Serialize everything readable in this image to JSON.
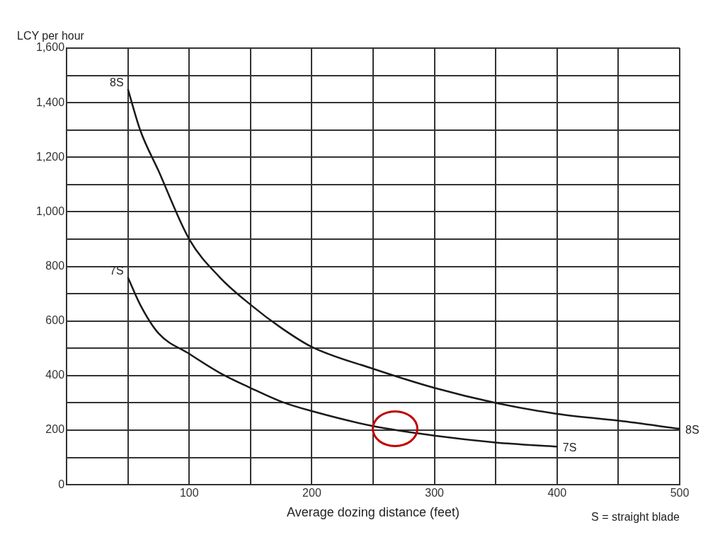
{
  "chart_data": {
    "type": "line",
    "xlabel": "Average dozing distance (feet)",
    "ylabel": "LCY per hour",
    "annotations": [
      "S = straight blade"
    ],
    "xlim": [
      0,
      500
    ],
    "xticks": [
      {
        "value": 0,
        "label": null
      },
      {
        "value": 50,
        "label": null
      },
      100,
      {
        "value": 150,
        "label": null
      },
      200,
      {
        "value": 250,
        "label": null
      },
      300,
      {
        "value": 350,
        "label": null
      },
      400,
      {
        "value": 450,
        "label": null
      },
      500
    ],
    "ylim": [
      0,
      1600
    ],
    "yticks": [
      0,
      {
        "value": 100,
        "label": null
      },
      200,
      {
        "value": 300,
        "label": null
      },
      400,
      {
        "value": 500,
        "label": null
      },
      600,
      {
        "value": 700,
        "label": null
      },
      800,
      {
        "value": 900,
        "label": null
      },
      {
        "value": 1000,
        "label": "1,000"
      },
      {
        "value": 1100,
        "label": null
      },
      {
        "value": 1200,
        "label": "1,200"
      },
      {
        "value": 1300,
        "label": null
      },
      {
        "value": 1400,
        "label": "1,400"
      },
      {
        "value": 1500,
        "label": null
      },
      {
        "value": 1600,
        "label": "1,600"
      }
    ],
    "grid": true,
    "legend": false,
    "marker": "none",
    "line_style": "solid",
    "series": [
      {
        "name": "8S",
        "color": "#1a1a1a",
        "x": [
          50,
          60,
          75,
          100,
          125,
          150,
          175,
          200,
          250,
          300,
          350,
          400,
          450,
          500
        ],
        "values": [
          1450,
          1300,
          1150,
          900,
          760,
          660,
          575,
          505,
          425,
          355,
          300,
          260,
          235,
          205
        ]
      },
      {
        "name": "7S",
        "color": "#1a1a1a",
        "x": [
          50,
          60,
          75,
          100,
          125,
          150,
          175,
          200,
          250,
          300,
          350,
          400
        ],
        "values": [
          760,
          660,
          555,
          480,
          410,
          355,
          305,
          270,
          215,
          180,
          155,
          140
        ]
      }
    ]
  }
}
